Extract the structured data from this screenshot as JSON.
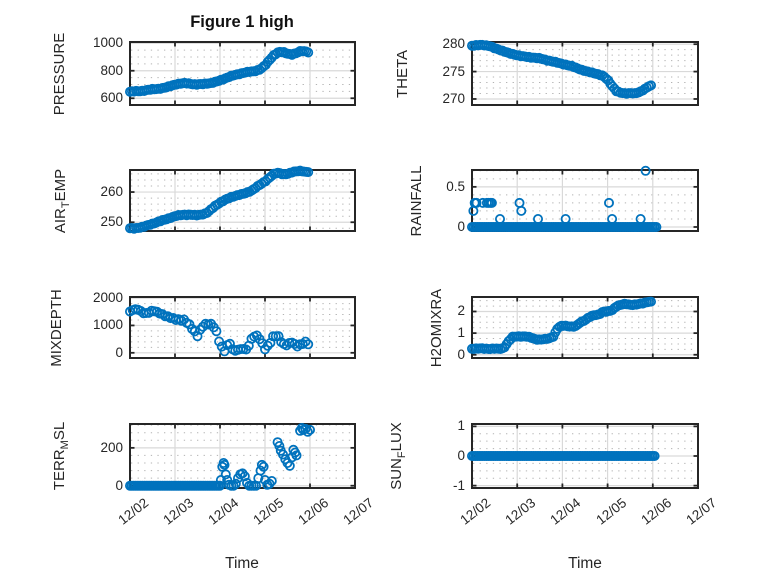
{
  "figure": {
    "title": "Figure 1 high",
    "background": "#ffffff",
    "marker_color": "#0072BD",
    "axis_color": "#262626",
    "major_grid_color": "#d9d9d9",
    "minor_grid_color": "#b3b3b3",
    "text_color": "#262626"
  },
  "x_axis": {
    "label": "Time",
    "tick_labels": [
      "12/02",
      "12/03",
      "12/04",
      "12/05",
      "12/06",
      "12/07"
    ],
    "tick_values": [
      0,
      1,
      2,
      3,
      4,
      5
    ],
    "range_days": [
      0,
      5
    ],
    "tick_label_rotation_deg": 38
  },
  "chart_data": [
    {
      "type": "scatter",
      "name": "PRESSURE",
      "ylabel_parts": [
        {
          "t": "PRESSURE"
        }
      ],
      "yticks": [
        600,
        800,
        1000
      ],
      "ylim": [
        551,
        1009
      ],
      "y_minor_step": 50,
      "mode": "interp",
      "points": [
        [
          0,
          648
        ],
        [
          0.1,
          650
        ],
        [
          0.2,
          652
        ],
        [
          0.3,
          655
        ],
        [
          0.4,
          660
        ],
        [
          0.5,
          665
        ],
        [
          0.6,
          668
        ],
        [
          0.7,
          672
        ],
        [
          0.8,
          678
        ],
        [
          0.9,
          690
        ],
        [
          1,
          700
        ],
        [
          1.1,
          706
        ],
        [
          1.2,
          710
        ],
        [
          1.3,
          708
        ],
        [
          1.4,
          702
        ],
        [
          1.5,
          700
        ],
        [
          1.6,
          703
        ],
        [
          1.7,
          707
        ],
        [
          1.8,
          710
        ],
        [
          1.9,
          718
        ],
        [
          2,
          730
        ],
        [
          2.1,
          742
        ],
        [
          2.2,
          755
        ],
        [
          2.3,
          766
        ],
        [
          2.4,
          775
        ],
        [
          2.5,
          783
        ],
        [
          2.6,
          790
        ],
        [
          2.7,
          794
        ],
        [
          2.8,
          800
        ],
        [
          2.9,
          812
        ],
        [
          3,
          838
        ],
        [
          3.1,
          878
        ],
        [
          3.2,
          915
        ],
        [
          3.3,
          935
        ],
        [
          3.4,
          936
        ],
        [
          3.5,
          925
        ],
        [
          3.6,
          918
        ],
        [
          3.7,
          928
        ],
        [
          3.8,
          944
        ],
        [
          3.9,
          942
        ],
        [
          4,
          930
        ]
      ]
    },
    {
      "type": "scatter",
      "name": "THETA",
      "ylabel_parts": [
        {
          "t": "THETA"
        }
      ],
      "yticks": [
        270,
        275,
        280
      ],
      "ylim": [
        268.9,
        280.4
      ],
      "y_minor_step": 1,
      "mode": "interp",
      "points": [
        [
          0,
          279.7
        ],
        [
          0.1,
          279.8
        ],
        [
          0.2,
          279.9
        ],
        [
          0.3,
          279.8
        ],
        [
          0.4,
          279.6
        ],
        [
          0.5,
          279.3
        ],
        [
          0.6,
          279
        ],
        [
          0.7,
          278.7
        ],
        [
          0.8,
          278.4
        ],
        [
          0.9,
          278.2
        ],
        [
          1,
          278
        ],
        [
          1.1,
          277.8
        ],
        [
          1.2,
          277.7
        ],
        [
          1.3,
          277.6
        ],
        [
          1.4,
          277.5
        ],
        [
          1.5,
          277.4
        ],
        [
          1.6,
          277.2
        ],
        [
          1.7,
          277
        ],
        [
          1.8,
          276.8
        ],
        [
          1.9,
          276.6
        ],
        [
          2,
          276.4
        ],
        [
          2.1,
          276.2
        ],
        [
          2.2,
          276
        ],
        [
          2.3,
          275.7
        ],
        [
          2.4,
          275.4
        ],
        [
          2.5,
          275.1
        ],
        [
          2.6,
          274.9
        ],
        [
          2.7,
          274.7
        ],
        [
          2.8,
          274.5
        ],
        [
          2.9,
          274.2
        ],
        [
          3,
          273.5
        ],
        [
          3.1,
          272.4
        ],
        [
          3.2,
          271.4
        ],
        [
          3.3,
          271.1
        ],
        [
          3.4,
          271
        ],
        [
          3.5,
          271.1
        ],
        [
          3.6,
          271
        ],
        [
          3.7,
          271.2
        ],
        [
          3.8,
          271.7
        ],
        [
          3.9,
          272.3
        ],
        [
          4,
          272.5
        ]
      ]
    },
    {
      "type": "scatter",
      "name": "AIR_TEMP",
      "ylabel_parts": [
        {
          "t": "AIR"
        },
        {
          "t": "T",
          "sub": true
        },
        {
          "t": "EMP"
        }
      ],
      "yticks": [
        250,
        260
      ],
      "ylim": [
        247.1,
        267.3
      ],
      "y_minor_step": 2,
      "mode": "interp",
      "points": [
        [
          0,
          248
        ],
        [
          0.1,
          248
        ],
        [
          0.2,
          248.2
        ],
        [
          0.3,
          248.5
        ],
        [
          0.4,
          249
        ],
        [
          0.5,
          249.5
        ],
        [
          0.6,
          250
        ],
        [
          0.7,
          250.5
        ],
        [
          0.8,
          251
        ],
        [
          0.9,
          251.5
        ],
        [
          1,
          252
        ],
        [
          1.1,
          252.3
        ],
        [
          1.2,
          252.5
        ],
        [
          1.3,
          252.5
        ],
        [
          1.4,
          252.4
        ],
        [
          1.5,
          252.3
        ],
        [
          1.6,
          252.6
        ],
        [
          1.7,
          253
        ],
        [
          1.8,
          254.2
        ],
        [
          1.9,
          255.5
        ],
        [
          2,
          256.5
        ],
        [
          2.1,
          257.3
        ],
        [
          2.2,
          258
        ],
        [
          2.3,
          258.6
        ],
        [
          2.4,
          259
        ],
        [
          2.5,
          259.3
        ],
        [
          2.6,
          259.8
        ],
        [
          2.7,
          260.5
        ],
        [
          2.8,
          261.5
        ],
        [
          2.9,
          262.5
        ],
        [
          3,
          263.5
        ],
        [
          3.1,
          264.8
        ],
        [
          3.2,
          266
        ],
        [
          3.3,
          266.4
        ],
        [
          3.4,
          265.9
        ],
        [
          3.5,
          266
        ],
        [
          3.6,
          266.5
        ],
        [
          3.7,
          266.9
        ],
        [
          3.8,
          267.1
        ],
        [
          3.9,
          266.6
        ],
        [
          4,
          266.7
        ]
      ]
    },
    {
      "type": "scatter",
      "name": "RAINFALL",
      "ylabel_parts": [
        {
          "t": "RAINFALL"
        }
      ],
      "yticks": [
        0,
        0.5
      ],
      "ylim": [
        -0.05,
        0.71
      ],
      "y_minor_step": 0.1,
      "mode": "discrete",
      "baseline": {
        "y": 0,
        "from": 0,
        "to": 4.1,
        "step": 0.04
      },
      "points": [
        [
          0.03,
          0.2
        ],
        [
          0.06,
          0.3
        ],
        [
          0.1,
          0.3
        ],
        [
          0.24,
          0.3
        ],
        [
          0.33,
          0.3
        ],
        [
          0.37,
          0.3
        ],
        [
          0.41,
          0.3
        ],
        [
          0.44,
          0.3
        ],
        [
          0.62,
          0.1
        ],
        [
          1.05,
          0.3
        ],
        [
          1.09,
          0.2
        ],
        [
          1.46,
          0.1
        ],
        [
          2.07,
          0.1
        ],
        [
          3.03,
          0.3
        ],
        [
          3.1,
          0.1
        ],
        [
          3.73,
          0.1
        ],
        [
          3.84,
          0.7
        ]
      ]
    },
    {
      "type": "scatter",
      "name": "MIXDEPTH",
      "ylabel_parts": [
        {
          "t": "MIXDEPTH"
        }
      ],
      "yticks": [
        0,
        1000,
        2000
      ],
      "ylim": [
        -190,
        2040
      ],
      "y_minor_step": 200,
      "mode": "interp",
      "points": [
        [
          0,
          1520
        ],
        [
          0.1,
          1600
        ],
        [
          0.2,
          1560
        ],
        [
          0.3,
          1450
        ],
        [
          0.4,
          1460
        ],
        [
          0.5,
          1550
        ],
        [
          0.6,
          1480
        ],
        [
          0.7,
          1420
        ],
        [
          0.8,
          1350
        ],
        [
          0.9,
          1280
        ],
        [
          1,
          1220
        ],
        [
          1.1,
          1210
        ],
        [
          1.2,
          1200
        ],
        [
          1.3,
          1050
        ],
        [
          1.4,
          850
        ],
        [
          1.5,
          640
        ],
        [
          1.6,
          950
        ],
        [
          1.7,
          1050
        ],
        [
          1.8,
          1050
        ],
        [
          1.9,
          900
        ],
        [
          2,
          300
        ],
        [
          2.1,
          60
        ],
        [
          2.2,
          420
        ],
        [
          2.3,
          60
        ],
        [
          2.4,
          100
        ],
        [
          2.5,
          150
        ],
        [
          2.6,
          120
        ],
        [
          2.7,
          500
        ],
        [
          2.8,
          650
        ],
        [
          2.9,
          480
        ],
        [
          3,
          150
        ],
        [
          3.1,
          300
        ],
        [
          3.2,
          650
        ],
        [
          3.3,
          600
        ],
        [
          3.4,
          300
        ],
        [
          3.5,
          280
        ],
        [
          3.6,
          400
        ],
        [
          3.7,
          250
        ],
        [
          3.8,
          300
        ],
        [
          3.9,
          380
        ],
        [
          4,
          300
        ]
      ]
    },
    {
      "type": "scatter",
      "name": "H2OMIXRA",
      "ylabel_parts": [
        {
          "t": "H2OMIXRA"
        }
      ],
      "yticks": [
        0,
        1,
        2
      ],
      "ylim": [
        -0.15,
        2.67
      ],
      "y_minor_step": 0.25,
      "mode": "interp",
      "points": [
        [
          0,
          0.28
        ],
        [
          0.1,
          0.28
        ],
        [
          0.2,
          0.29
        ],
        [
          0.3,
          0.28
        ],
        [
          0.4,
          0.27
        ],
        [
          0.5,
          0.28
        ],
        [
          0.6,
          0.27
        ],
        [
          0.7,
          0.3
        ],
        [
          0.8,
          0.6
        ],
        [
          0.9,
          0.82
        ],
        [
          1,
          0.85
        ],
        [
          1.1,
          0.85
        ],
        [
          1.2,
          0.84
        ],
        [
          1.3,
          0.8
        ],
        [
          1.4,
          0.72
        ],
        [
          1.5,
          0.7
        ],
        [
          1.6,
          0.72
        ],
        [
          1.7,
          0.75
        ],
        [
          1.8,
          0.85
        ],
        [
          1.9,
          1.25
        ],
        [
          2,
          1.35
        ],
        [
          2.1,
          1.33
        ],
        [
          2.2,
          1.3
        ],
        [
          2.3,
          1.32
        ],
        [
          2.4,
          1.5
        ],
        [
          2.5,
          1.6
        ],
        [
          2.6,
          1.75
        ],
        [
          2.7,
          1.82
        ],
        [
          2.8,
          1.85
        ],
        [
          2.9,
          2
        ],
        [
          3,
          2
        ],
        [
          3.1,
          2.05
        ],
        [
          3.2,
          2.25
        ],
        [
          3.3,
          2.32
        ],
        [
          3.4,
          2.35
        ],
        [
          3.5,
          2.3
        ],
        [
          3.6,
          2.32
        ],
        [
          3.7,
          2.35
        ],
        [
          3.8,
          2.38
        ],
        [
          3.9,
          2.45
        ],
        [
          4,
          2.45
        ]
      ]
    },
    {
      "type": "scatter",
      "name": "TERR_MSL",
      "ylabel_parts": [
        {
          "t": "TERR"
        },
        {
          "t": "M",
          "sub": true
        },
        {
          "t": "SL"
        }
      ],
      "yticks": [
        0,
        200
      ],
      "ylim": [
        -12,
        326
      ],
      "y_minor_step": 40,
      "mode": "discrete",
      "baseline": {
        "y": 0,
        "from": 0,
        "to": 2.0,
        "step": 0.04
      },
      "points": [
        [
          2.02,
          30
        ],
        [
          2.05,
          100
        ],
        [
          2.08,
          120
        ],
        [
          2.1,
          110
        ],
        [
          2.13,
          60
        ],
        [
          2.16,
          30
        ],
        [
          2.2,
          5
        ],
        [
          2.25,
          0
        ],
        [
          2.3,
          0
        ],
        [
          2.35,
          10
        ],
        [
          2.4,
          40
        ],
        [
          2.45,
          60
        ],
        [
          2.5,
          65
        ],
        [
          2.55,
          50
        ],
        [
          2.6,
          15
        ],
        [
          2.65,
          0
        ],
        [
          2.7,
          0
        ],
        [
          2.75,
          0
        ],
        [
          2.8,
          0
        ],
        [
          2.85,
          40
        ],
        [
          2.9,
          80
        ],
        [
          2.93,
          110
        ],
        [
          2.97,
          100
        ],
        [
          3,
          30
        ],
        [
          3.05,
          5
        ],
        [
          3.1,
          10
        ],
        [
          3.15,
          25
        ],
        [
          3.28,
          230
        ],
        [
          3.32,
          210
        ],
        [
          3.35,
          185
        ],
        [
          3.4,
          165
        ],
        [
          3.45,
          140
        ],
        [
          3.5,
          120
        ],
        [
          3.55,
          105
        ],
        [
          3.6,
          150
        ],
        [
          3.63,
          190
        ],
        [
          3.67,
          175
        ],
        [
          3.7,
          160
        ],
        [
          3.78,
          290
        ],
        [
          3.82,
          305
        ],
        [
          3.85,
          295
        ],
        [
          3.9,
          300
        ],
        [
          3.95,
          285
        ],
        [
          4,
          295
        ]
      ]
    },
    {
      "type": "scatter",
      "name": "SUN_FLUX",
      "ylabel_parts": [
        {
          "t": "SUN"
        },
        {
          "t": "F",
          "sub": true
        },
        {
          "t": "LUX"
        }
      ],
      "yticks": [
        -1,
        0,
        1
      ],
      "ylim": [
        -1.08,
        1.08
      ],
      "y_minor_step": 0.25,
      "mode": "discrete",
      "baseline": {
        "y": 0,
        "from": 0,
        "to": 4.05,
        "step": 0.04
      },
      "points": []
    }
  ]
}
